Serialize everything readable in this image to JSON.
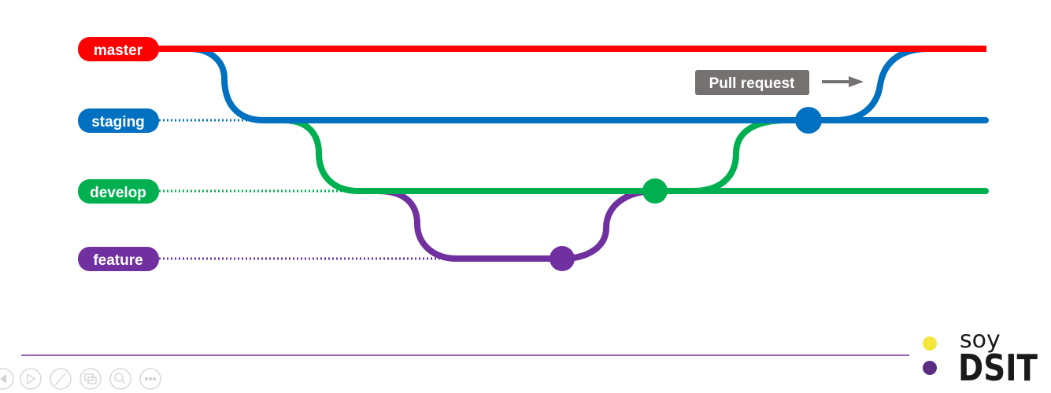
{
  "colors": {
    "master": "#ff0000",
    "staging": "#0070c0",
    "develop": "#00b050",
    "feature": "#7030a0",
    "pull_request_box": "#767171",
    "divider": "#7030a0",
    "logo_yellow_dot": "#f5e63c",
    "logo_purple_dot": "#5b2c83"
  },
  "branches": [
    {
      "id": "master",
      "label": "master",
      "color": "#ff0000"
    },
    {
      "id": "staging",
      "label": "staging",
      "color": "#0070c0"
    },
    {
      "id": "develop",
      "label": "develop",
      "color": "#00b050"
    },
    {
      "id": "feature",
      "label": "feature",
      "color": "#7030a0"
    }
  ],
  "annotation": {
    "label": "Pull request"
  },
  "logo": {
    "prefix": "soy",
    "name": "DSIT"
  },
  "player_controls": [
    {
      "name": "previous-icon"
    },
    {
      "name": "play-icon"
    },
    {
      "name": "pen-icon"
    },
    {
      "name": "slides-icon"
    },
    {
      "name": "zoom-icon"
    },
    {
      "name": "more-options-icon"
    }
  ]
}
